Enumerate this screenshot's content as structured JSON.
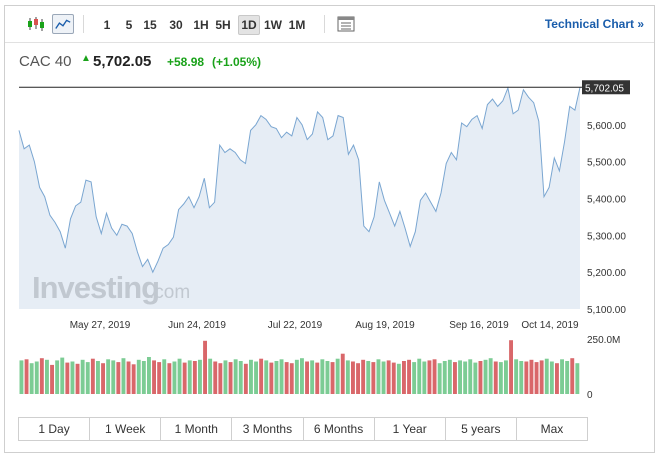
{
  "toolbar": {
    "timeframes": [
      "1",
      "5",
      "15",
      "30",
      "1H",
      "5H",
      "1D",
      "1W",
      "1M"
    ],
    "active_timeframe": "1D",
    "technical_chart_label": "Technical Chart »"
  },
  "quote": {
    "name": "CAC 40",
    "price": "5,702.05",
    "change": "+58.98",
    "change_pct": "(+1.05%)",
    "up_color": "#1aa21a"
  },
  "watermark": {
    "brand": "Investing",
    "suffix": ".com"
  },
  "chart_data": {
    "type": "area",
    "title": "",
    "xlabel": "",
    "ylabel": "",
    "x_tick_labels": [
      "May 27, 2019",
      "Jun 24, 2019",
      "Jul 22, 2019",
      "Aug 19, 2019",
      "Sep 16, 2019",
      "Oct 14, 2019"
    ],
    "y_tick_labels": [
      "5,600.00",
      "5,500.00",
      "5,400.00",
      "5,300.00",
      "5,200.00",
      "5,100.00"
    ],
    "ylim": [
      5100,
      5700
    ],
    "last_value_label": "5,702.05",
    "series": [
      {
        "values": [
          5585,
          5535,
          5545,
          5500,
          5430,
          5405,
          5355,
          5335,
          5310,
          5265,
          5345,
          5380,
          5390,
          5450,
          5445,
          5350,
          5305,
          5360,
          5320,
          5300,
          5330,
          5325,
          5305,
          5255,
          5215,
          5235,
          5200,
          5230,
          5265,
          5275,
          5295,
          5370,
          5385,
          5405,
          5375,
          5405,
          5455,
          5375,
          5390,
          5545,
          5525,
          5535,
          5525,
          5505,
          5495,
          5585,
          5600,
          5625,
          5615,
          5595,
          5590,
          5565,
          5580,
          5570,
          5620,
          5600,
          5560,
          5575,
          5635,
          5620,
          5560,
          5570,
          5625,
          5620,
          5520,
          5545,
          5505,
          5325,
          5310,
          5350,
          5445,
          5395,
          5360,
          5325,
          5365,
          5320,
          5270,
          5310,
          5395,
          5415,
          5390,
          5365,
          5415,
          5495,
          5525,
          5505,
          5605,
          5595,
          5615,
          5625,
          5590,
          5655,
          5670,
          5650,
          5665,
          5700,
          5630,
          5640,
          5695,
          5675,
          5660,
          5610,
          5405,
          5430,
          5510,
          5475,
          5555,
          5650,
          5640,
          5702
        ]
      }
    ],
    "volume": {
      "y_tick_labels": [
        "250.0M",
        "0"
      ],
      "up_color": "#7ccc94",
      "down_color": "#d9676a",
      "values": [
        60,
        62,
        55,
        58,
        64,
        61,
        52,
        60,
        65,
        56,
        58,
        54,
        61,
        57,
        63,
        59,
        55,
        62,
        60,
        57,
        64,
        58,
        53,
        61,
        59,
        66,
        60,
        57,
        62,
        55,
        58,
        63,
        56,
        60,
        59,
        61,
        95,
        63,
        58,
        55,
        60,
        57,
        62,
        59,
        54,
        61,
        58,
        63,
        60,
        56,
        59,
        62,
        57,
        55,
        61,
        64,
        58,
        60,
        56,
        62,
        59,
        57,
        63,
        72,
        60,
        58,
        55,
        61,
        59,
        57,
        62,
        58,
        60,
        56,
        54,
        59,
        61,
        57,
        63,
        58,
        60,
        62,
        55,
        59,
        61,
        57,
        60,
        58,
        62,
        56,
        59,
        61,
        64,
        58,
        57,
        60,
        96,
        62,
        59,
        58,
        61,
        57,
        60,
        63,
        58,
        55,
        62,
        59,
        64,
        55
      ],
      "up": [
        1,
        0,
        1,
        1,
        0,
        1,
        0,
        1,
        1,
        0,
        1,
        0,
        1,
        1,
        0,
        1,
        0,
        1,
        1,
        0,
        1,
        0,
        0,
        1,
        1,
        1,
        0,
        0,
        1,
        0,
        1,
        1,
        0,
        1,
        0,
        1,
        0,
        1,
        0,
        0,
        1,
        0,
        1,
        1,
        0,
        1,
        1,
        0,
        1,
        0,
        1,
        1,
        0,
        0,
        1,
        1,
        0,
        1,
        0,
        1,
        1,
        0,
        1,
        0,
        1,
        0,
        0,
        0,
        1,
        0,
        1,
        1,
        0,
        0,
        1,
        0,
        0,
        1,
        1,
        1,
        0,
        0,
        1,
        1,
        1,
        0,
        1,
        1,
        1,
        1,
        0,
        1,
        1,
        0,
        1,
        1,
        0,
        1,
        1,
        0,
        0,
        0,
        0,
        1,
        1,
        0,
        1,
        1,
        0,
        1
      ]
    }
  },
  "ranges": [
    "1 Day",
    "1 Week",
    "1 Month",
    "3 Months",
    "6 Months",
    "1 Year",
    "5 years",
    "Max"
  ]
}
